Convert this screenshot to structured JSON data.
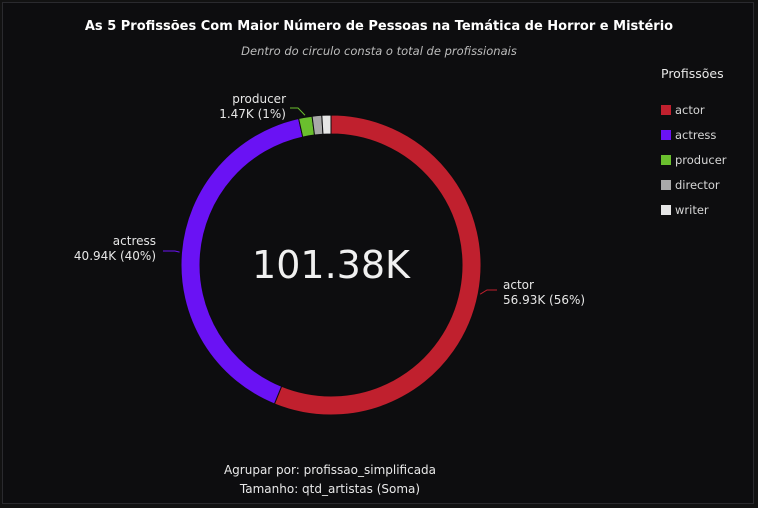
{
  "chart_data": {
    "type": "pie",
    "donut": true,
    "title": "As 5 Profissões Com Maior Número de Pessoas na Temática de Horror e Mistério",
    "subtitle": "Dentro do circulo consta o total de profissionais",
    "center_total": "101.38K",
    "legend_title": "Profissões",
    "legend_position": "right",
    "slices": [
      {
        "name": "actor",
        "value": 56.93,
        "display": "56.93K (56%)",
        "color": "#c0202e"
      },
      {
        "name": "actress",
        "value": 40.94,
        "display": "40.94K (40%)",
        "color": "#6a12f4"
      },
      {
        "name": "producer",
        "value": 1.47,
        "display": "1.47K (1%)",
        "color": "#6abf2e"
      },
      {
        "name": "director",
        "value": 1.05,
        "display": "",
        "color": "#a9a9a9"
      },
      {
        "name": "writer",
        "value": 0.99,
        "display": "",
        "color": "#e6e6e6"
      }
    ]
  },
  "footer": {
    "group_by": "Agrupar por: profissao_simplificada",
    "size": "Tamanho: qtd_artistas (Soma)"
  }
}
